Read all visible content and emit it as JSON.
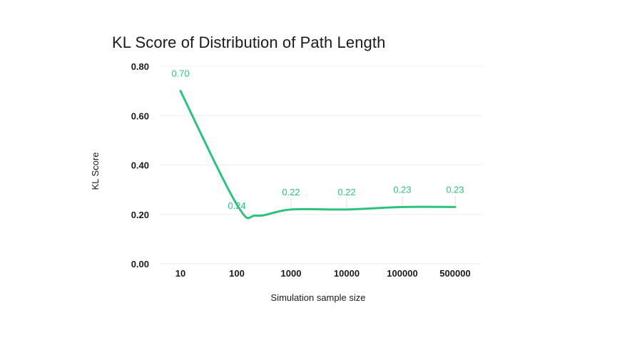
{
  "chart_data": {
    "type": "line",
    "title": "KL Score of Distribution of Path Length",
    "xlabel": "Simulation sample size",
    "ylabel": "KL Score",
    "categories": [
      "10",
      "100",
      "1000",
      "10000",
      "100000",
      "500000"
    ],
    "values": [
      0.7,
      0.24,
      0.22,
      0.22,
      0.23,
      0.23
    ],
    "data_labels": [
      "0.70",
      "0.24",
      "0.22",
      "0.22",
      "0.23",
      "0.23"
    ],
    "yticks": [
      "0.00",
      "0.20",
      "0.40",
      "0.60",
      "0.80"
    ],
    "ylim": [
      0,
      0.8
    ],
    "grid": true,
    "legend": "none",
    "color": "#2ec27e"
  }
}
